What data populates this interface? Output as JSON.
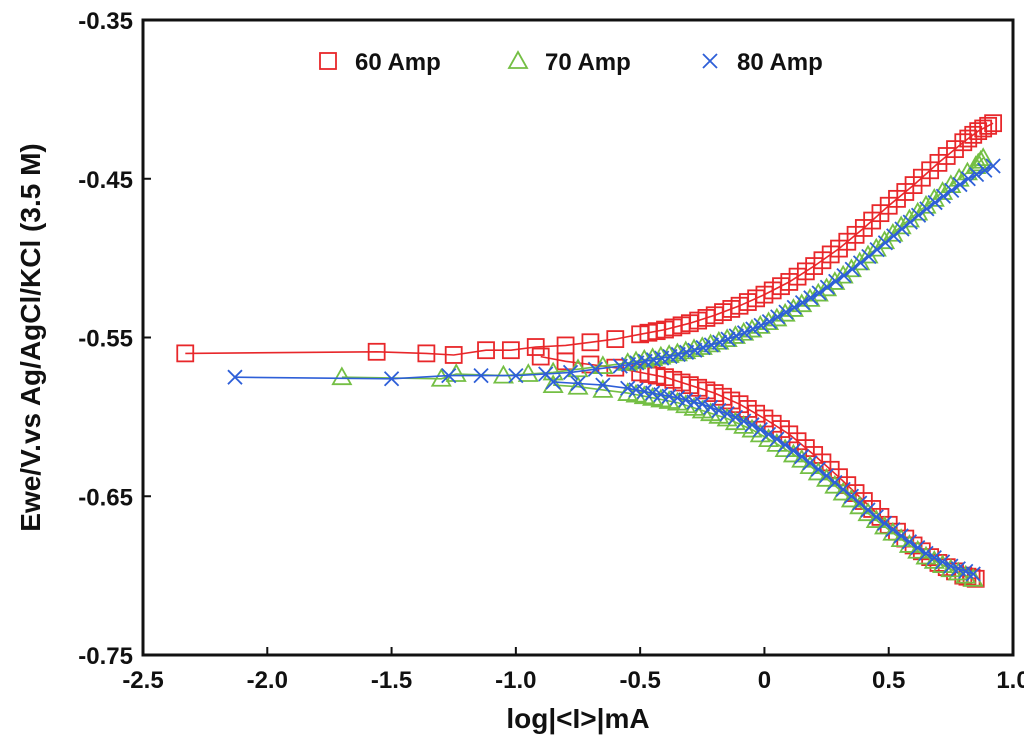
{
  "chart_data": {
    "type": "scatter",
    "xlabel": "log|<I>|mA",
    "ylabel": "Ewe/V.vs Ag/AgCl/KCl (3.5 M)",
    "xlim": [
      -2.5,
      1.0
    ],
    "ylim": [
      -0.75,
      -0.35
    ],
    "x_ticks": [
      -2.5,
      -2.0,
      -1.5,
      -1.0,
      -0.5,
      0,
      0.5,
      1.0
    ],
    "x_tick_labels": [
      "-2.5",
      "-2.0",
      "-1.5",
      "-1.0",
      "-0.5",
      "0",
      "0.5",
      "1.0"
    ],
    "y_ticks": [
      -0.35,
      -0.45,
      -0.55,
      -0.65,
      -0.75
    ],
    "y_tick_labels": [
      "-0.35",
      "-0.45",
      "-0.55",
      "-0.65",
      "-0.75"
    ],
    "legend_position": "top-center",
    "grid": false,
    "series": [
      {
        "name": "60 Amp",
        "marker": "square",
        "color": "#e8272a",
        "corrosion_potential": -0.56,
        "anodic": [
          [
            -2.33,
            -0.56
          ],
          [
            -1.56,
            -0.559
          ],
          [
            -1.36,
            -0.56
          ],
          [
            -1.25,
            -0.561
          ],
          [
            -1.12,
            -0.558
          ],
          [
            -1.02,
            -0.558
          ],
          [
            -0.92,
            -0.556
          ],
          [
            -0.8,
            -0.555
          ],
          [
            -0.7,
            -0.553
          ],
          [
            -0.6,
            -0.551
          ],
          [
            -0.5,
            -0.548
          ],
          [
            -0.4,
            -0.545
          ],
          [
            -0.3,
            -0.541
          ],
          [
            -0.2,
            -0.536
          ],
          [
            -0.1,
            -0.53
          ],
          [
            0.0,
            -0.523
          ],
          [
            0.1,
            -0.515
          ],
          [
            0.2,
            -0.505
          ],
          [
            0.3,
            -0.494
          ],
          [
            0.4,
            -0.481
          ],
          [
            0.5,
            -0.467
          ],
          [
            0.6,
            -0.454
          ],
          [
            0.7,
            -0.44
          ],
          [
            0.8,
            -0.427
          ],
          [
            0.86,
            -0.42
          ],
          [
            0.92,
            -0.415
          ]
        ],
        "cathodic": [
          [
            -0.9,
            -0.562
          ],
          [
            -0.8,
            -0.565
          ],
          [
            -0.7,
            -0.567
          ],
          [
            -0.6,
            -0.569
          ],
          [
            -0.5,
            -0.572
          ],
          [
            -0.4,
            -0.575
          ],
          [
            -0.3,
            -0.58
          ],
          [
            -0.2,
            -0.585
          ],
          [
            -0.1,
            -0.592
          ],
          [
            0.0,
            -0.601
          ],
          [
            0.1,
            -0.611
          ],
          [
            0.2,
            -0.624
          ],
          [
            0.3,
            -0.638
          ],
          [
            0.4,
            -0.653
          ],
          [
            0.5,
            -0.668
          ],
          [
            0.6,
            -0.681
          ],
          [
            0.7,
            -0.692
          ],
          [
            0.8,
            -0.7
          ],
          [
            0.85,
            -0.702
          ]
        ]
      },
      {
        "name": "70 Amp",
        "marker": "triangle",
        "color": "#74bf44",
        "corrosion_potential": -0.575,
        "anodic": [
          [
            -1.7,
            -0.575
          ],
          [
            -1.3,
            -0.576
          ],
          [
            -1.24,
            -0.573
          ],
          [
            -1.05,
            -0.574
          ],
          [
            -0.95,
            -0.573
          ],
          [
            -0.85,
            -0.572
          ],
          [
            -0.75,
            -0.57
          ],
          [
            -0.65,
            -0.568
          ],
          [
            -0.55,
            -0.566
          ],
          [
            -0.45,
            -0.563
          ],
          [
            -0.35,
            -0.56
          ],
          [
            -0.25,
            -0.556
          ],
          [
            -0.15,
            -0.551
          ],
          [
            -0.05,
            -0.545
          ],
          [
            0.05,
            -0.538
          ],
          [
            0.15,
            -0.529
          ],
          [
            0.25,
            -0.519
          ],
          [
            0.35,
            -0.507
          ],
          [
            0.45,
            -0.494
          ],
          [
            0.55,
            -0.48
          ],
          [
            0.65,
            -0.467
          ],
          [
            0.75,
            -0.454
          ],
          [
            0.85,
            -0.442
          ],
          [
            0.88,
            -0.437
          ]
        ],
        "cathodic": [
          [
            -0.85,
            -0.58
          ],
          [
            -0.75,
            -0.581
          ],
          [
            -0.65,
            -0.583
          ],
          [
            -0.55,
            -0.585
          ],
          [
            -0.45,
            -0.588
          ],
          [
            -0.35,
            -0.591
          ],
          [
            -0.25,
            -0.596
          ],
          [
            -0.15,
            -0.601
          ],
          [
            -0.05,
            -0.608
          ],
          [
            0.05,
            -0.617
          ],
          [
            0.15,
            -0.627
          ],
          [
            0.25,
            -0.639
          ],
          [
            0.35,
            -0.652
          ],
          [
            0.45,
            -0.665
          ],
          [
            0.55,
            -0.677
          ],
          [
            0.65,
            -0.688
          ],
          [
            0.75,
            -0.696
          ],
          [
            0.84,
            -0.702
          ]
        ]
      },
      {
        "name": "80 Amp",
        "marker": "x",
        "color": "#2e5fd8",
        "corrosion_potential": -0.575,
        "anodic": [
          [
            -2.13,
            -0.575
          ],
          [
            -1.5,
            -0.576
          ],
          [
            -1.27,
            -0.574
          ],
          [
            -1.14,
            -0.574
          ],
          [
            -1.0,
            -0.574
          ],
          [
            -0.88,
            -0.573
          ],
          [
            -0.78,
            -0.572
          ],
          [
            -0.68,
            -0.57
          ],
          [
            -0.58,
            -0.568
          ],
          [
            -0.48,
            -0.565
          ],
          [
            -0.38,
            -0.562
          ],
          [
            -0.28,
            -0.558
          ],
          [
            -0.18,
            -0.553
          ],
          [
            -0.08,
            -0.547
          ],
          [
            0.02,
            -0.54
          ],
          [
            0.12,
            -0.531
          ],
          [
            0.22,
            -0.522
          ],
          [
            0.32,
            -0.511
          ],
          [
            0.42,
            -0.499
          ],
          [
            0.52,
            -0.486
          ],
          [
            0.62,
            -0.473
          ],
          [
            0.72,
            -0.461
          ],
          [
            0.82,
            -0.45
          ],
          [
            0.92,
            -0.442
          ]
        ],
        "cathodic": [
          [
            -0.85,
            -0.578
          ],
          [
            -0.75,
            -0.579
          ],
          [
            -0.65,
            -0.58
          ],
          [
            -0.55,
            -0.582
          ],
          [
            -0.45,
            -0.585
          ],
          [
            -0.35,
            -0.588
          ],
          [
            -0.25,
            -0.592
          ],
          [
            -0.15,
            -0.598
          ],
          [
            -0.05,
            -0.605
          ],
          [
            0.05,
            -0.614
          ],
          [
            0.15,
            -0.625
          ],
          [
            0.25,
            -0.637
          ],
          [
            0.35,
            -0.65
          ],
          [
            0.45,
            -0.663
          ],
          [
            0.55,
            -0.675
          ],
          [
            0.65,
            -0.686
          ],
          [
            0.75,
            -0.694
          ],
          [
            0.84,
            -0.699
          ]
        ]
      }
    ]
  }
}
